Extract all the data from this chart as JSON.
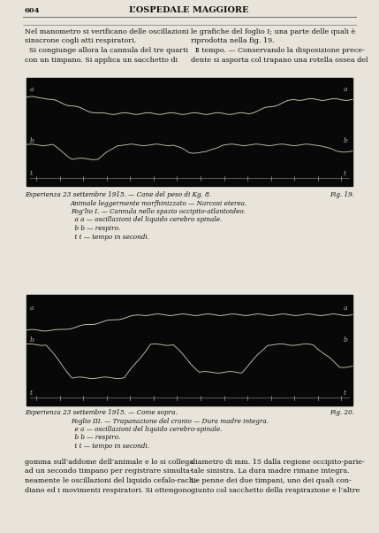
{
  "page_number": "604",
  "header_title": "L’OSPEDALE MAGGIORE",
  "bg_color": "#e8e4db",
  "chart_bg": "#080808",
  "line_color_aa": "#ccccb8",
  "line_color_bb": "#c0c0ac",
  "line_color_tt": "#a0a090",
  "left_text_lines": [
    "Nel manometro si verificano delle oscillazioni",
    "sinscrone cogli atti respiratori.",
    "  Si congiunge allora la cannula del tre quarti",
    "con un timpano. Si applica un sacchetto di"
  ],
  "right_text_lines": [
    "le grafiche del foglio I; una parte delle quali è",
    "riprodotta nella fig. 19.",
    "  Ⅱ tempo. — Conservando la disposizione prece-",
    "dente si asporta col trapano una rotella ossea del"
  ],
  "caption1_left": "Esperienza 23 settembre 1915. — Cane del peso di Kg. 8.",
  "caption1_right": "Fig. 19.",
  "caption1_lines": [
    "Animale leggermente morfhinizzato — Narcosi eterea.",
    "Fog’lio I. — Cannula nello spazio occipito-atlantoideo.",
    "  a a — oscillazioni del liquido cerebro spinale.",
    "  b b — respiro.",
    "  t t — tempo in secondi."
  ],
  "caption2_left": "Esperienza 23 settembre 1915. — Come sopra.",
  "caption2_right": "Fig. 20.",
  "caption2_lines": [
    "Foglio III. — Trapanazione del cranio — Dura madre integra.",
    "  e a — oscillazioni del liquido cerebro-spinale.",
    "  b b — respiro.",
    "  t t — tempo in secondi."
  ],
  "bottom_left_lines": [
    "gomma sull’addome dell’animale e lo si collega",
    "ad un secondo timpano per registrare simulta-",
    "neamente le oscillazioni del liquido cefalo-rachi-",
    "diano ed i movimenti respiratori. Si ottengono"
  ],
  "bottom_right_lines": [
    "diametro di mm. 15 dalla regione occipito-parie-",
    "tale sinistra. La dura madre rimane integra.",
    "Le penne dei due timpani, uno dei quali con-",
    "giunto col sacchetto della respirazione e l’altre"
  ]
}
